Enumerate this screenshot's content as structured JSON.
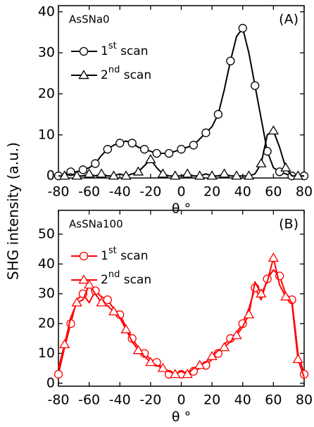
{
  "ylabel": "SHG intensity (a.u.)",
  "chart_data": [
    {
      "type": "line",
      "annotation": "AsSNa0",
      "panel_label": "(A)",
      "xlabel": "θ °",
      "x": [
        -80,
        -76,
        -72,
        -68,
        -64,
        -60,
        -56,
        -52,
        -48,
        -44,
        -40,
        -36,
        -32,
        -28,
        -24,
        -20,
        -16,
        -12,
        -8,
        -4,
        0,
        4,
        8,
        12,
        16,
        20,
        24,
        28,
        32,
        36,
        40,
        44,
        48,
        52,
        56,
        60,
        64,
        68,
        72,
        76,
        80
      ],
      "xlim": [
        -80,
        80
      ],
      "ylim": [
        -0.5,
        41.5
      ],
      "xticks": [
        -80,
        -60,
        -40,
        -20,
        0,
        20,
        40,
        60,
        80
      ],
      "yticks": [
        0,
        10,
        20,
        30,
        40
      ],
      "series": [
        {
          "name": "1st scan",
          "color": "#000000",
          "marker": "circle",
          "values": [
            0,
            0.5,
            1,
            1,
            1.5,
            2,
            3,
            5,
            6.5,
            7.5,
            8,
            8.5,
            8,
            7,
            6.5,
            6,
            5.5,
            5.5,
            5.5,
            6,
            6.5,
            7,
            7.5,
            9,
            10.5,
            12,
            15,
            21,
            28,
            34,
            36,
            30,
            22,
            14,
            6,
            2,
            1,
            0.5,
            0,
            0,
            0
          ]
        },
        {
          "name": "2nd scan",
          "color": "#000000",
          "marker": "triangle",
          "values": [
            0,
            0,
            0.5,
            0,
            0,
            0.5,
            0,
            0.5,
            0,
            0,
            0.5,
            0,
            0.5,
            1,
            2.5,
            4,
            2,
            0.5,
            0,
            0,
            0,
            0.5,
            0,
            0,
            0.5,
            0,
            0,
            0.5,
            0,
            0,
            0,
            0,
            0.5,
            3,
            10,
            11,
            7,
            2,
            0,
            0,
            0
          ]
        }
      ]
    },
    {
      "type": "line",
      "annotation": "AsSNa100",
      "panel_label": "(B)",
      "xlabel": "θ °",
      "x": [
        -80,
        -76,
        -72,
        -68,
        -64,
        -60,
        -56,
        -52,
        -48,
        -44,
        -40,
        -36,
        -32,
        -28,
        -24,
        -20,
        -16,
        -12,
        -8,
        -4,
        0,
        4,
        8,
        12,
        16,
        20,
        24,
        28,
        32,
        36,
        40,
        44,
        48,
        52,
        56,
        60,
        64,
        68,
        72,
        76,
        80
      ],
      "xlim": [
        -80,
        80
      ],
      "ylim": [
        -1,
        58
      ],
      "xticks": [
        -80,
        -60,
        -40,
        -20,
        0,
        20,
        40,
        60,
        80
      ],
      "yticks": [
        0,
        10,
        20,
        30,
        40,
        50
      ],
      "series": [
        {
          "name": "1st scan",
          "color": "#ff0000",
          "marker": "circle",
          "values": [
            3,
            12,
            20,
            28,
            30,
            27,
            31,
            29,
            28,
            25,
            23,
            19,
            15,
            12,
            10,
            8,
            7,
            5,
            3,
            3,
            3,
            4,
            4,
            5,
            6,
            8,
            10,
            13,
            15,
            17,
            20,
            25,
            32,
            28,
            35,
            38,
            36,
            30,
            28,
            10,
            3
          ]
        },
        {
          "name": "2nd scan",
          "color": "#ff0000",
          "marker": "triangle",
          "values": [
            5,
            13,
            22,
            27,
            28,
            33,
            30,
            27,
            26,
            24,
            22,
            18,
            14,
            11,
            9,
            7,
            6,
            5,
            4,
            3,
            4,
            3,
            5,
            6,
            7,
            9,
            11,
            12,
            14,
            16,
            19,
            23,
            34,
            30,
            34,
            42,
            33,
            29,
            27,
            8,
            2
          ]
        }
      ]
    }
  ]
}
